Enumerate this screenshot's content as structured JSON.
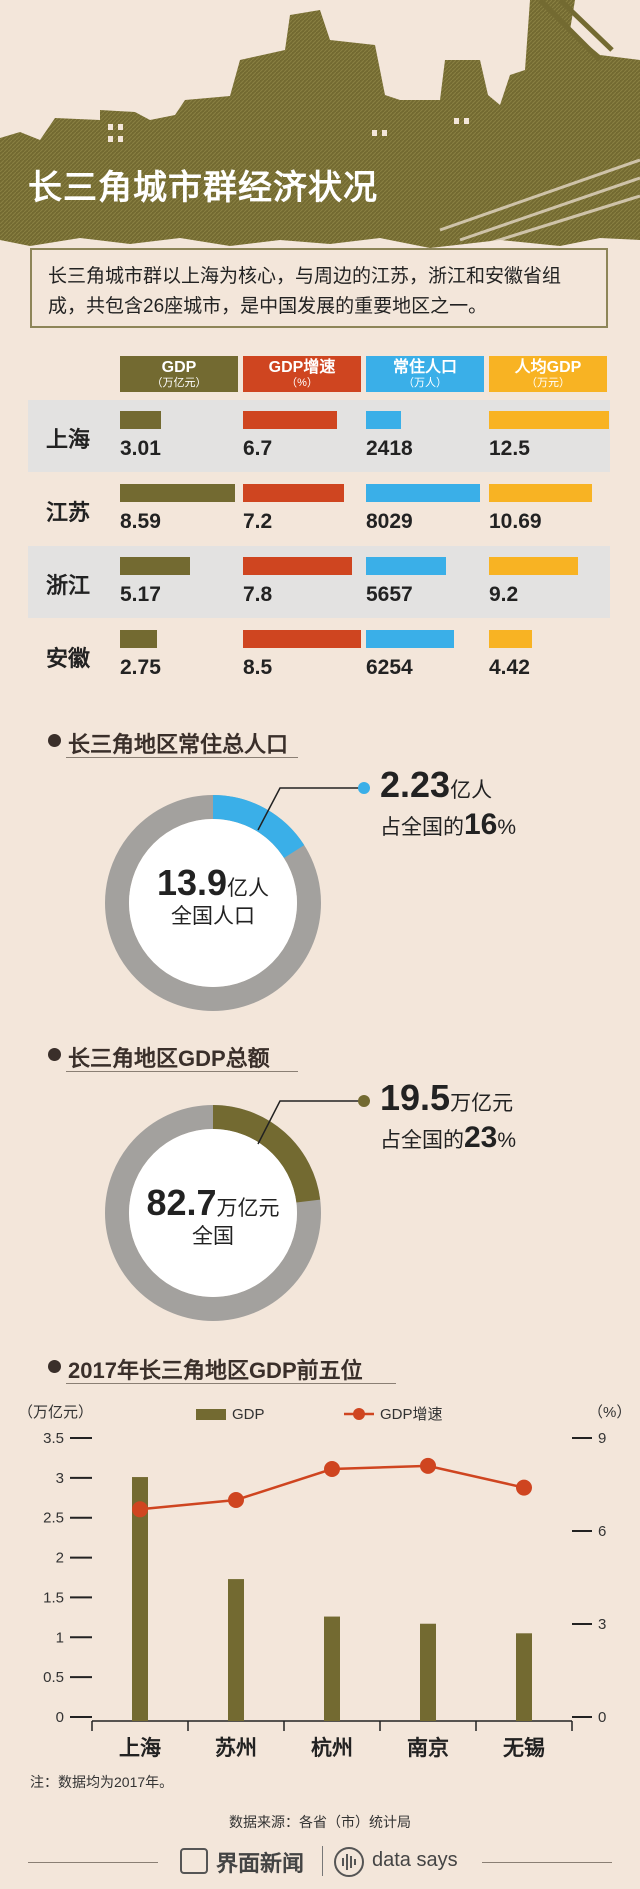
{
  "title": "长三角城市群经济状况",
  "intro": "长三角城市群以上海为核心，与周边的江苏，浙江和安徽省组成，共包含26座城市，是中国发展的重要地区之一。",
  "colors": {
    "gdp": "#736a31",
    "gdp_growth": "#cf4520",
    "population": "#3aafe8",
    "per_capita": "#f8b323",
    "ring_bg": "#a3a19e"
  },
  "table": {
    "headers": [
      {
        "title": "GDP",
        "unit": "（万亿元）"
      },
      {
        "title": "GDP增速",
        "unit": "（%）"
      },
      {
        "title": "常住人口",
        "unit": "（万人）"
      },
      {
        "title": "人均GDP",
        "unit": "（万元）"
      }
    ],
    "rows": [
      {
        "city": "上海",
        "gdp": "3.01",
        "growth": "6.7",
        "pop": "2418",
        "percap": "12.5"
      },
      {
        "city": "江苏",
        "gdp": "8.59",
        "growth": "7.2",
        "pop": "8029",
        "percap": "10.69"
      },
      {
        "city": "浙江",
        "gdp": "5.17",
        "growth": "7.8",
        "pop": "5657",
        "percap": "9.2"
      },
      {
        "city": "安徽",
        "gdp": "2.75",
        "growth": "8.5",
        "pop": "6254",
        "percap": "4.42"
      }
    ]
  },
  "population_section": {
    "heading": "长三角地区常住总人口",
    "value": "2.23",
    "value_unit": "亿人",
    "share_prefix": "占全国的",
    "share": "16",
    "share_unit": "%",
    "center_value": "13.9",
    "center_unit": "亿人",
    "center_label": "全国人口"
  },
  "gdp_section": {
    "heading": "长三角地区GDP总额",
    "value": "19.5",
    "value_unit": "万亿元",
    "share_prefix": "占全国的",
    "share": "23",
    "share_unit": "%",
    "center_value": "82.7",
    "center_unit": "万亿元",
    "center_label": "全国"
  },
  "top5_section": {
    "heading": "2017年长三角地区GDP前五位"
  },
  "chart_data": [
    {
      "type": "bar",
      "title": "长三角城市群经济状况",
      "categories": [
        "上海",
        "江苏",
        "浙江",
        "安徽"
      ],
      "series": [
        {
          "name": "GDP",
          "values": [
            3.01,
            8.59,
            5.17,
            2.75
          ]
        },
        {
          "name": "GDP增速",
          "values": [
            6.7,
            7.2,
            7.8,
            8.5
          ]
        },
        {
          "name": "常住人口",
          "values": [
            2418,
            8029,
            5657,
            6254
          ]
        },
        {
          "name": "人均GDP",
          "values": [
            12.5,
            10.69,
            9.2,
            4.42
          ]
        }
      ]
    },
    {
      "type": "pie",
      "title": "长三角地区常住总人口",
      "values": [
        16,
        84
      ]
    },
    {
      "type": "pie",
      "title": "长三角地区GDP总额",
      "values": [
        23,
        77
      ]
    },
    {
      "type": "bar",
      "title": "2017年长三角地区GDP前五位",
      "categories": [
        "上海",
        "苏州",
        "杭州",
        "南京",
        "无锡"
      ],
      "series": [
        {
          "name": "GDP",
          "values": [
            3.01,
            1.73,
            1.26,
            1.17,
            1.05
          ]
        },
        {
          "name": "GDP增速",
          "values": [
            6.7,
            7.0,
            8.0,
            8.1,
            7.4
          ]
        }
      ],
      "ylabel": "（万亿元）",
      "y2label": "（%）",
      "ylim": [
        0,
        3.5
      ],
      "y_ticks": [
        "0",
        "0.5",
        "1",
        "1.5",
        "2",
        "2.5",
        "3",
        "3.5"
      ],
      "y2lim": [
        0,
        9
      ],
      "y2_ticks": [
        "0",
        "3",
        "6",
        "9"
      ],
      "grid": false,
      "legend": "top"
    }
  ],
  "footer": {
    "note": "注：数据均为2017年。",
    "source": "数据来源：各省（市）统计局",
    "brand": "界面新闻",
    "brand2": "data says"
  }
}
